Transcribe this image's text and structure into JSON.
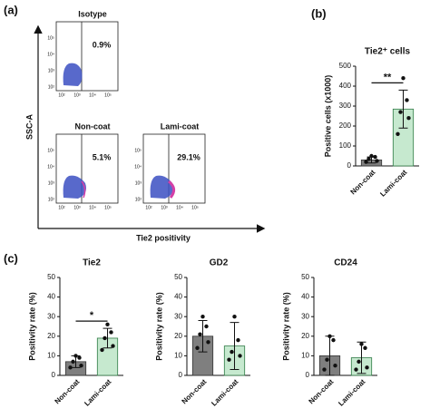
{
  "flow_cytometry": {
    "panel_label": "(a)",
    "y_axis_label": "SSC-A",
    "x_axis_label": "Tie2 positivity",
    "tick_labels": [
      "10²",
      "10³",
      "10⁴",
      "10⁵"
    ],
    "panels": [
      {
        "title": "Isotype",
        "percentage": "0.9%"
      },
      {
        "title": "Non-coat",
        "percentage": "5.1%"
      },
      {
        "title": "Lami-coat",
        "percentage": "29.1%"
      }
    ]
  },
  "panel_labels": {
    "b": "(b)",
    "c": "(c)"
  },
  "chart_data": [
    {
      "type": "bar",
      "title": "Tie2⁺ cells",
      "ylabel": "Positive cells (x1000)",
      "categories": [
        "Non-coat",
        "Lami-coat"
      ],
      "values": [
        30,
        285
      ],
      "errors": [
        15,
        95
      ],
      "points": [
        [
          20,
          25,
          35,
          45,
          50
        ],
        [
          160,
          240,
          270,
          330,
          440
        ]
      ],
      "colors": [
        "#7f7f7f",
        "#c6e9cf"
      ],
      "ylim": [
        0,
        500
      ],
      "yticks": [
        0,
        100,
        200,
        300,
        400,
        500
      ],
      "annotation": "**"
    },
    {
      "type": "bar",
      "title": "Tie2",
      "ylabel": "Positivity rate (%)",
      "categories": [
        "Non-coat",
        "Lami-coat"
      ],
      "values": [
        7,
        19
      ],
      "errors": [
        3,
        5
      ],
      "points": [
        [
          4,
          5,
          7,
          9,
          10
        ],
        [
          13,
          15,
          19,
          22,
          26
        ]
      ],
      "colors": [
        "#7f7f7f",
        "#c6e9cf"
      ],
      "ylim": [
        0,
        50
      ],
      "yticks": [
        0,
        10,
        20,
        30,
        40,
        50
      ],
      "annotation": "*"
    },
    {
      "type": "bar",
      "title": "GD2",
      "ylabel": "Positivity rate (%)",
      "categories": [
        "Non-coat",
        "Lami-coat"
      ],
      "values": [
        20,
        15
      ],
      "errors": [
        8,
        12
      ],
      "points": [
        [
          14,
          17,
          21,
          25,
          30
        ],
        [
          8,
          10,
          12,
          18,
          30
        ]
      ],
      "colors": [
        "#7f7f7f",
        "#c6e9cf"
      ],
      "ylim": [
        0,
        50
      ],
      "yticks": [
        0,
        10,
        20,
        30,
        40,
        50
      ]
    },
    {
      "type": "bar",
      "title": "CD24",
      "ylabel": "Positivity rate (%)",
      "categories": [
        "Non-coat",
        "Lami-coat"
      ],
      "values": [
        10,
        9
      ],
      "errors": [
        10,
        8
      ],
      "points": [
        [
          3,
          5,
          8,
          18,
          20
        ],
        [
          3,
          4,
          7,
          14,
          16
        ]
      ],
      "colors": [
        "#7f7f7f",
        "#c6e9cf"
      ],
      "ylim": [
        0,
        50
      ],
      "yticks": [
        0,
        10,
        20,
        30,
        40,
        50
      ]
    }
  ]
}
